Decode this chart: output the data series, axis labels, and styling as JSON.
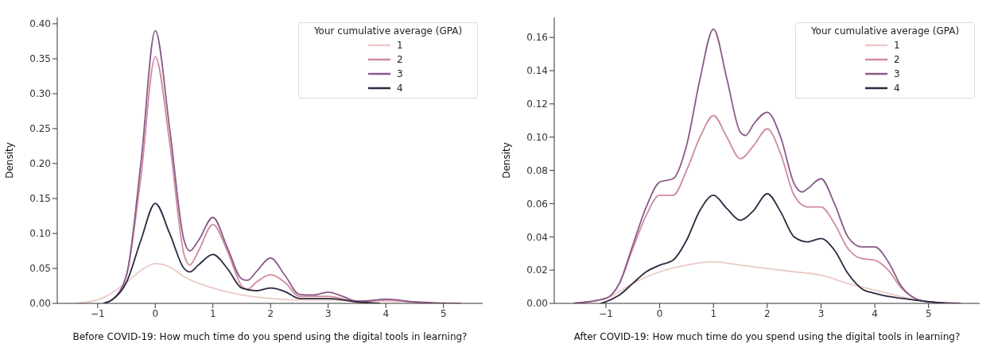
{
  "chart_data": [
    {
      "type": "line",
      "xlabel": "Before COVID-19: How much time do you spend using the digital tools in learning?",
      "ylabel": "Density",
      "legend_title": "Your cumulative average (GPA)",
      "legend": "top right",
      "xlim": [
        -1.7,
        5.68
      ],
      "ylim": [
        0,
        0.409
      ],
      "xticks": [
        {
          "value": -1,
          "label": "−1"
        },
        0,
        1,
        2,
        3,
        4,
        5
      ],
      "yticks": [
        {
          "value": 0,
          "label": "0.00"
        },
        {
          "value": 0.05,
          "label": "0.05"
        },
        {
          "value": 0.1,
          "label": "0.10"
        },
        {
          "value": 0.15,
          "label": "0.15"
        },
        {
          "value": 0.2,
          "label": "0.20"
        },
        {
          "value": 0.25,
          "label": "0.25"
        },
        {
          "value": 0.3,
          "label": "0.30"
        },
        {
          "value": 0.35,
          "label": "0.35"
        },
        {
          "value": 0.4,
          "label": "0.40"
        }
      ],
      "series": [
        {
          "name": "1",
          "color": "#ecc9c5",
          "x": [
            -1.4,
            -1,
            -0.75,
            -0.5,
            -0.25,
            0,
            0.25,
            0.5,
            1,
            1.5,
            2,
            2.5,
            3,
            3.5,
            4,
            4.5,
            5,
            5.3
          ],
          "values": [
            0,
            0.005,
            0.015,
            0.03,
            0.047,
            0.057,
            0.052,
            0.038,
            0.022,
            0.012,
            0.007,
            0.005,
            0.005,
            0.004,
            0.003,
            0.002,
            0.001,
            0
          ]
        },
        {
          "name": "2",
          "color": "#d08a9e",
          "x": [
            -0.9,
            -0.75,
            -0.5,
            -0.25,
            0,
            0.25,
            0.5,
            0.6,
            0.75,
            1,
            1.25,
            1.5,
            1.6,
            1.75,
            2,
            2.25,
            2.5,
            3,
            3.5,
            4,
            4.5,
            5,
            5.3
          ],
          "values": [
            0,
            0.005,
            0.04,
            0.18,
            0.353,
            0.23,
            0.07,
            0.055,
            0.075,
            0.113,
            0.075,
            0.025,
            0.02,
            0.03,
            0.041,
            0.03,
            0.01,
            0.01,
            0.003,
            0.005,
            0.002,
            0,
            0
          ]
        },
        {
          "name": "3",
          "color": "#8a5a88",
          "x": [
            -0.9,
            -0.75,
            -0.5,
            -0.25,
            0,
            0.25,
            0.5,
            0.6,
            0.75,
            1,
            1.25,
            1.5,
            1.6,
            1.75,
            2,
            2.25,
            2.5,
            2.75,
            3,
            3.25,
            3.5,
            3.75,
            4,
            4.5,
            5,
            5.3
          ],
          "values": [
            0,
            0.005,
            0.04,
            0.2,
            0.39,
            0.25,
            0.09,
            0.075,
            0.09,
            0.123,
            0.08,
            0.035,
            0.033,
            0.045,
            0.065,
            0.04,
            0.013,
            0.012,
            0.016,
            0.01,
            0.003,
            0.004,
            0.006,
            0.002,
            0,
            0
          ]
        },
        {
          "name": "4",
          "color": "#2e2740",
          "x": [
            -0.9,
            -0.75,
            -0.5,
            -0.25,
            0,
            0.25,
            0.5,
            0.6,
            0.75,
            1,
            1.25,
            1.5,
            1.75,
            2,
            2.25,
            2.5,
            3,
            3.5,
            3.9
          ],
          "values": [
            0,
            0.005,
            0.03,
            0.09,
            0.143,
            0.1,
            0.05,
            0.045,
            0.055,
            0.07,
            0.05,
            0.022,
            0.018,
            0.022,
            0.017,
            0.007,
            0.007,
            0.002,
            0
          ]
        }
      ]
    },
    {
      "type": "line",
      "xlabel": "After COVID-19: How much time do you spend using the digital tools in learning?",
      "ylabel": "Density",
      "legend_title": "Your cumulative average (GPA)",
      "legend": "top right",
      "xlim": [
        -1.96,
        5.95
      ],
      "ylim": [
        0,
        0.172
      ],
      "xticks": [
        {
          "value": -1,
          "label": "−1"
        },
        0,
        1,
        2,
        3,
        4,
        5
      ],
      "yticks": [
        {
          "value": 0,
          "label": "0.00"
        },
        {
          "value": 0.02,
          "label": "0.02"
        },
        {
          "value": 0.04,
          "label": "0.04"
        },
        {
          "value": 0.06,
          "label": "0.06"
        },
        {
          "value": 0.08,
          "label": "0.08"
        },
        {
          "value": 0.1,
          "label": "0.10"
        },
        {
          "value": 0.12,
          "label": "0.12"
        },
        {
          "value": 0.14,
          "label": "0.14"
        },
        {
          "value": 0.16,
          "label": "0.16"
        }
      ],
      "series": [
        {
          "name": "1",
          "color": "#ecc9c5",
          "x": [
            -1.6,
            -1,
            -0.5,
            0,
            0.5,
            1,
            1.5,
            2,
            2.5,
            3,
            3.5,
            4,
            4.5,
            5,
            5.6
          ],
          "values": [
            0,
            0.003,
            0.012,
            0.019,
            0.023,
            0.025,
            0.023,
            0.021,
            0.019,
            0.017,
            0.012,
            0.008,
            0.004,
            0.001,
            0
          ]
        },
        {
          "name": "2",
          "color": "#d08a9e",
          "x": [
            -1.6,
            -1,
            -0.75,
            -0.5,
            -0.25,
            0,
            0.25,
            0.5,
            0.75,
            1,
            1.25,
            1.5,
            1.75,
            2,
            2.25,
            2.5,
            2.75,
            3,
            3.25,
            3.5,
            3.75,
            4,
            4.25,
            4.5,
            4.75,
            5,
            5.6
          ],
          "values": [
            0,
            0.003,
            0.012,
            0.033,
            0.053,
            0.065,
            0.065,
            0.08,
            0.1,
            0.113,
            0.1,
            0.087,
            0.095,
            0.105,
            0.09,
            0.065,
            0.058,
            0.058,
            0.048,
            0.033,
            0.027,
            0.026,
            0.02,
            0.009,
            0.003,
            0.001,
            0
          ]
        },
        {
          "name": "3",
          "color": "#8a5a88",
          "x": [
            -1.6,
            -1,
            -0.75,
            -0.5,
            -0.25,
            0,
            0.25,
            0.5,
            0.75,
            1,
            1.25,
            1.5,
            1.6,
            1.75,
            2,
            2.25,
            2.5,
            2.65,
            2.75,
            3,
            3.25,
            3.5,
            3.75,
            4,
            4.25,
            4.5,
            4.75,
            5,
            5.6
          ],
          "values": [
            0,
            0.003,
            0.012,
            0.035,
            0.058,
            0.073,
            0.075,
            0.095,
            0.135,
            0.165,
            0.135,
            0.103,
            0.101,
            0.108,
            0.115,
            0.1,
            0.072,
            0.067,
            0.069,
            0.075,
            0.06,
            0.04,
            0.034,
            0.034,
            0.025,
            0.01,
            0.003,
            0.001,
            0
          ]
        },
        {
          "name": "4",
          "color": "#2e2740",
          "x": [
            -1.1,
            -1,
            -0.75,
            -0.5,
            -0.25,
            0,
            0.25,
            0.5,
            0.75,
            1,
            1.25,
            1.5,
            1.75,
            2,
            2.25,
            2.5,
            2.75,
            3,
            3.25,
            3.5,
            3.75,
            4,
            4.5,
            5,
            5.3
          ],
          "values": [
            0,
            0.001,
            0.005,
            0.012,
            0.019,
            0.023,
            0.026,
            0.038,
            0.056,
            0.065,
            0.057,
            0.05,
            0.056,
            0.066,
            0.055,
            0.04,
            0.037,
            0.039,
            0.032,
            0.018,
            0.009,
            0.006,
            0.003,
            0.001,
            0
          ]
        }
      ]
    }
  ]
}
